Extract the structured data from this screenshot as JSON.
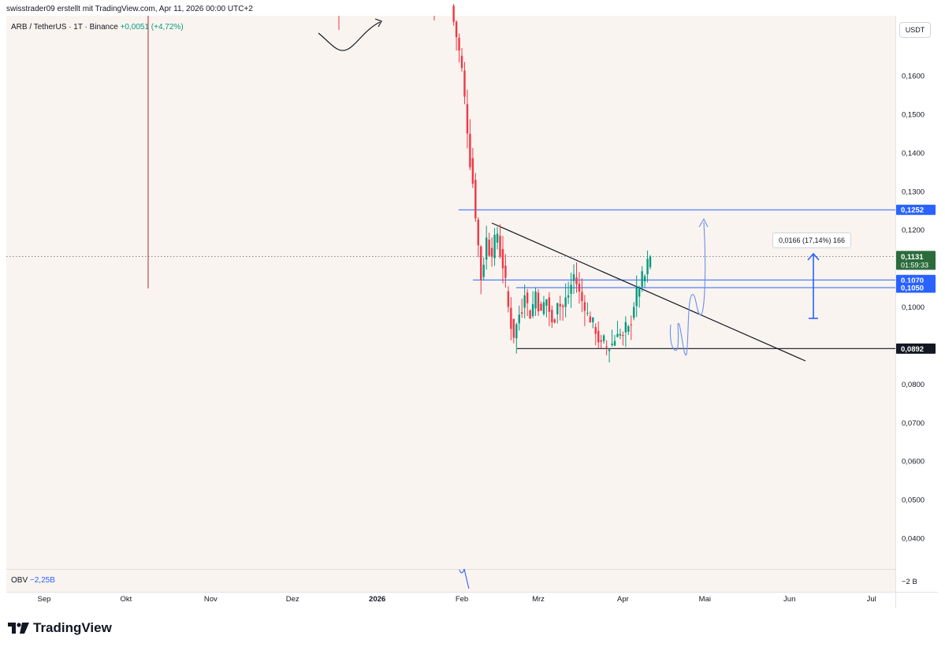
{
  "header": {
    "attribution": "swisstrader09 erstellt mit TradingView.com, Apr 11, 2026 00:00 UTC+2"
  },
  "legend": {
    "symbol": "ARB / TetherUS · 1T · Binance",
    "change": "+0,0051 (+4,72%)"
  },
  "currency_button": "USDT",
  "obv": {
    "label": "OBV",
    "value": "−2,25B",
    "axis_label": "−2 B"
  },
  "measure": {
    "label": "0,0166 (17,14%) 166"
  },
  "price_labels": {
    "r1": "0,1252",
    "current": "0,1131",
    "countdown": "01:59:33",
    "r2": "0,1070",
    "r3": "0,1050",
    "support": "0,0892"
  },
  "footer": {
    "brand": "TradingView"
  },
  "colors": {
    "up": "#089981",
    "down": "#f23645",
    "chart_bg": "#f9f4ef",
    "blue": "#2962ff",
    "current_badge": "#2b6b3c"
  },
  "chart_data": {
    "type": "candlestick",
    "title": "ARB / TetherUS · 1T · Binance",
    "y_ticks": [
      0.04,
      0.05,
      0.06,
      0.07,
      0.08,
      0.09,
      0.1,
      0.11,
      0.12,
      0.13,
      0.14,
      0.15,
      0.16
    ],
    "y_tick_labels": [
      "0,0400",
      "0,0500",
      "0,0600",
      "0,0700",
      "0,0800",
      "",
      "0,1000",
      "",
      "0,1200",
      "0,1300",
      "0,1400",
      "0,1500",
      "0,1600"
    ],
    "x_labels": [
      {
        "date": "2025-09-01",
        "label": "Sep"
      },
      {
        "date": "2025-10-01",
        "label": "Okt"
      },
      {
        "date": "2025-11-01",
        "label": "Nov"
      },
      {
        "date": "2025-12-01",
        "label": "Dez"
      },
      {
        "date": "2026-01-01",
        "label": "2026"
      },
      {
        "date": "2026-02-01",
        "label": "Feb"
      },
      {
        "date": "2026-03-01",
        "label": "Mrz"
      },
      {
        "date": "2026-04-01",
        "label": "Apr"
      },
      {
        "date": "2026-05-01",
        "label": "Mai"
      },
      {
        "date": "2026-06-01",
        "label": "Jun"
      },
      {
        "date": "2026-07-01",
        "label": "Jul"
      }
    ],
    "series_close": [
      {
        "date": "2026-01-30",
        "close": 0.17
      },
      {
        "date": "2026-02-01",
        "close": 0.162
      },
      {
        "date": "2026-02-03",
        "close": 0.145
      },
      {
        "date": "2026-02-05",
        "close": 0.132
      },
      {
        "date": "2026-02-06",
        "close": 0.123
      },
      {
        "date": "2026-02-07",
        "close": 0.116
      },
      {
        "date": "2026-02-08",
        "close": 0.107
      },
      {
        "date": "2026-02-10",
        "close": 0.118
      },
      {
        "date": "2026-02-12",
        "close": 0.113
      },
      {
        "date": "2026-02-14",
        "close": 0.119
      },
      {
        "date": "2026-02-16",
        "close": 0.11
      },
      {
        "date": "2026-02-18",
        "close": 0.1
      },
      {
        "date": "2026-02-20",
        "close": 0.092
      },
      {
        "date": "2026-02-22",
        "close": 0.098
      },
      {
        "date": "2026-02-24",
        "close": 0.103
      },
      {
        "date": "2026-02-26",
        "close": 0.097
      },
      {
        "date": "2026-02-28",
        "close": 0.104
      },
      {
        "date": "2026-03-02",
        "close": 0.099
      },
      {
        "date": "2026-03-04",
        "close": 0.102
      },
      {
        "date": "2026-03-06",
        "close": 0.096
      },
      {
        "date": "2026-03-08",
        "close": 0.101
      },
      {
        "date": "2026-03-10",
        "close": 0.1
      },
      {
        "date": "2026-03-12",
        "close": 0.103
      },
      {
        "date": "2026-03-14",
        "close": 0.1085
      },
      {
        "date": "2026-03-16",
        "close": 0.104
      },
      {
        "date": "2026-03-18",
        "close": 0.099
      },
      {
        "date": "2026-03-20",
        "close": 0.096
      },
      {
        "date": "2026-03-22",
        "close": 0.093
      },
      {
        "date": "2026-03-24",
        "close": 0.091
      },
      {
        "date": "2026-03-26",
        "close": 0.0895
      },
      {
        "date": "2026-03-28",
        "close": 0.0905
      },
      {
        "date": "2026-03-30",
        "close": 0.093
      },
      {
        "date": "2026-04-01",
        "close": 0.0925
      },
      {
        "date": "2026-04-03",
        "close": 0.095
      },
      {
        "date": "2026-04-05",
        "close": 0.1
      },
      {
        "date": "2026-04-07",
        "close": 0.105
      },
      {
        "date": "2026-04-09",
        "close": 0.108
      },
      {
        "date": "2026-04-11",
        "close": 0.1131
      }
    ],
    "horizontal_levels": [
      0.1252,
      0.107,
      0.105,
      0.0892
    ],
    "current_price": 0.1131
  }
}
